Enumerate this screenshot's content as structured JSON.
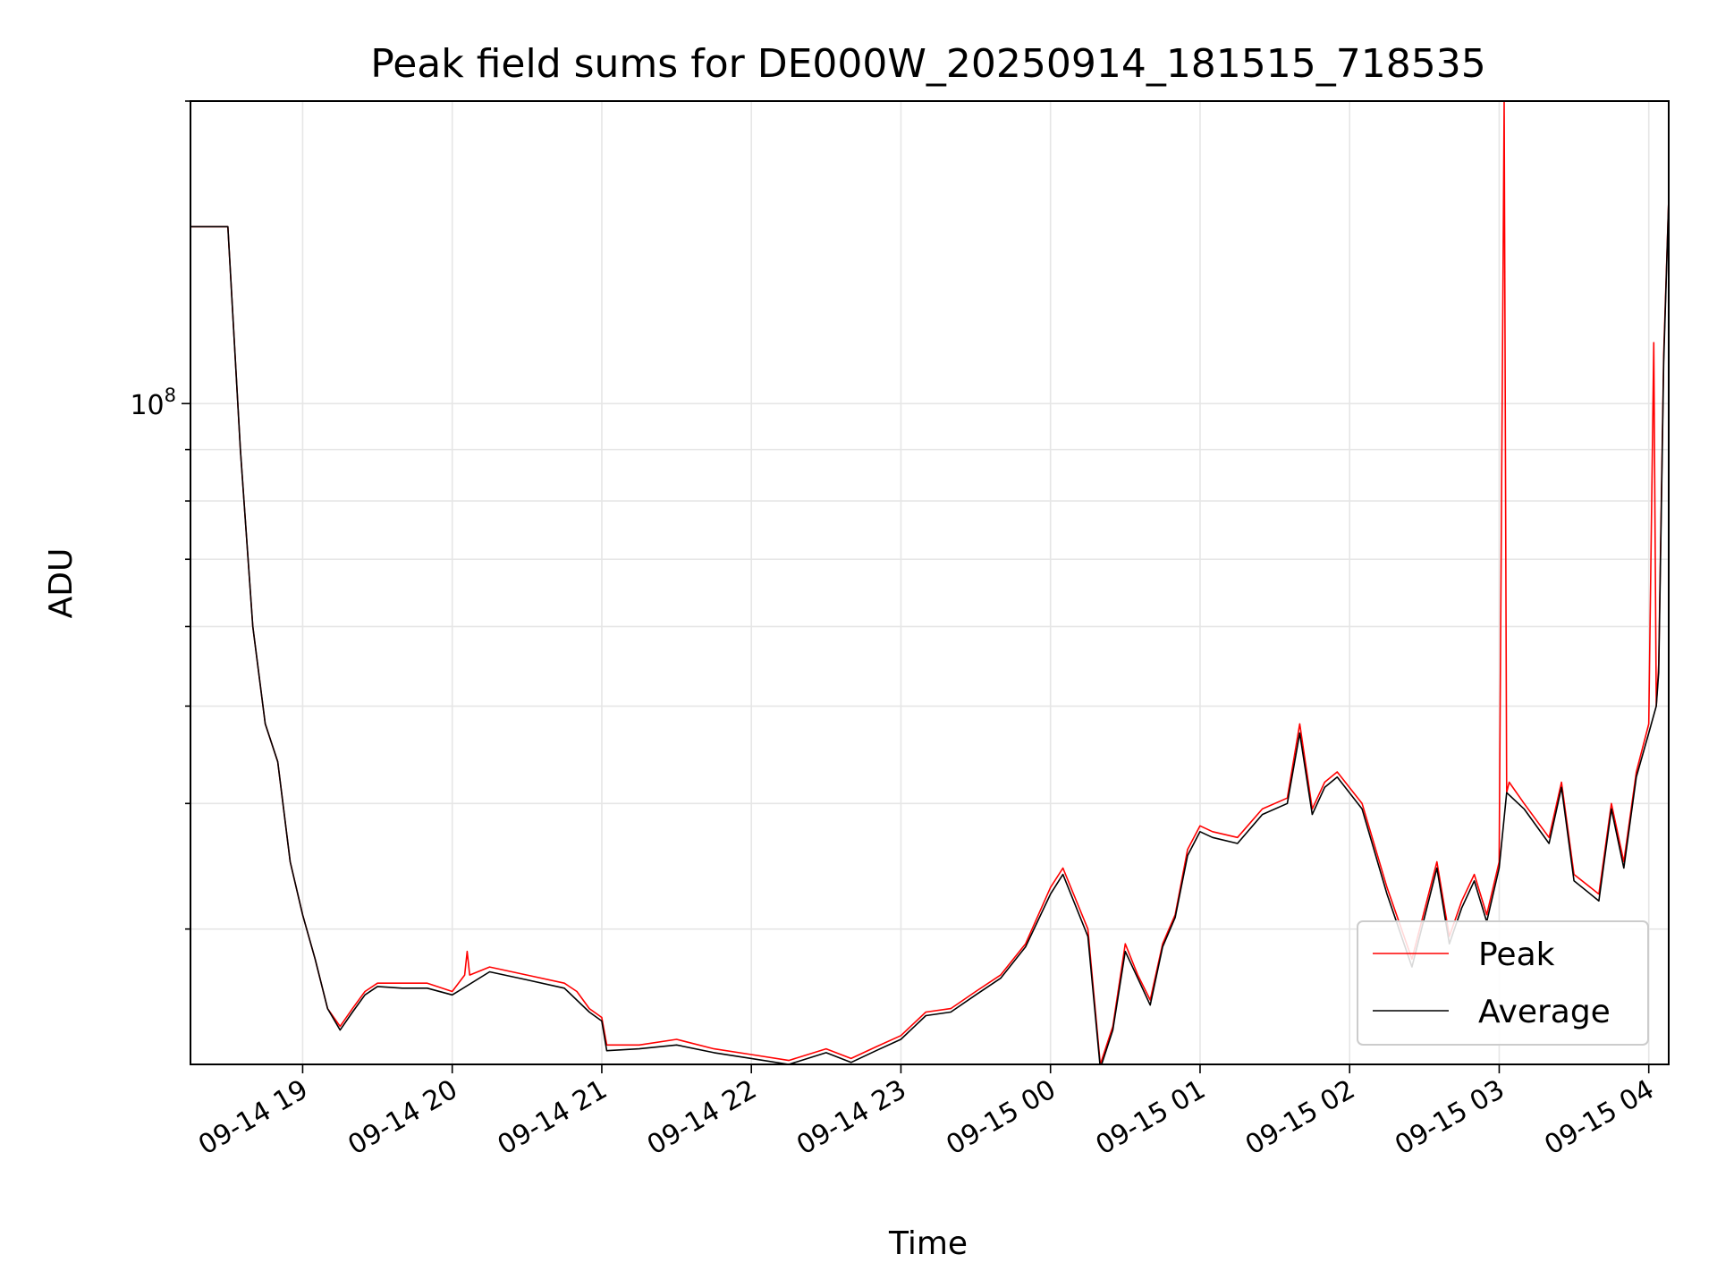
{
  "chart_data": {
    "type": "line",
    "title": "Peak field sums for DE000W_20250914_181515_718535",
    "xlabel": "Time",
    "ylabel": "ADU",
    "yscale": "log",
    "grid": true,
    "legend_position": "lower-right",
    "x_domain": [
      "2025-09-14 18:15",
      "2025-09-15 04:08"
    ],
    "ylim": [
      22000000,
      200000000
    ],
    "x_ticks": [
      {
        "time": "2025-09-14 19:00",
        "label": "09-14 19"
      },
      {
        "time": "2025-09-14 20:00",
        "label": "09-14 20"
      },
      {
        "time": "2025-09-14 21:00",
        "label": "09-14 21"
      },
      {
        "time": "2025-09-14 22:00",
        "label": "09-14 22"
      },
      {
        "time": "2025-09-14 23:00",
        "label": "09-14 23"
      },
      {
        "time": "2025-09-15 00:00",
        "label": "09-15 00"
      },
      {
        "time": "2025-09-15 01:00",
        "label": "09-15 01"
      },
      {
        "time": "2025-09-15 02:00",
        "label": "09-15 02"
      },
      {
        "time": "2025-09-15 03:00",
        "label": "09-15 03"
      },
      {
        "time": "2025-09-15 04:00",
        "label": "09-15 04"
      }
    ],
    "y_major_ticks": [
      {
        "value": 100000000,
        "label_base": "10",
        "label_exp": "8"
      }
    ],
    "y_minor_ticks": [
      30000000,
      40000000,
      50000000,
      60000000,
      70000000,
      80000000,
      90000000,
      200000000
    ],
    "series": [
      {
        "name": "Peak",
        "color": "#ff0000",
        "x": [
          "2025-09-14 18:15",
          "2025-09-14 18:30",
          "2025-09-14 18:35",
          "2025-09-14 18:40",
          "2025-09-14 18:45",
          "2025-09-14 18:50",
          "2025-09-14 18:55",
          "2025-09-14 19:00",
          "2025-09-14 19:05",
          "2025-09-14 19:10",
          "2025-09-14 19:15",
          "2025-09-14 19:20",
          "2025-09-14 19:25",
          "2025-09-14 19:30",
          "2025-09-14 19:40",
          "2025-09-14 19:50",
          "2025-09-14 20:00",
          "2025-09-14 20:05",
          "2025-09-14 20:06",
          "2025-09-14 20:07",
          "2025-09-14 20:15",
          "2025-09-14 20:30",
          "2025-09-14 20:45",
          "2025-09-14 20:50",
          "2025-09-14 20:55",
          "2025-09-14 21:00",
          "2025-09-14 21:02",
          "2025-09-14 21:15",
          "2025-09-14 21:30",
          "2025-09-14 21:45",
          "2025-09-14 22:00",
          "2025-09-14 22:15",
          "2025-09-14 22:30",
          "2025-09-14 22:40",
          "2025-09-14 22:50",
          "2025-09-14 23:00",
          "2025-09-14 23:10",
          "2025-09-14 23:20",
          "2025-09-14 23:30",
          "2025-09-14 23:40",
          "2025-09-14 23:50",
          "2025-09-15 00:00",
          "2025-09-15 00:05",
          "2025-09-15 00:15",
          "2025-09-15 00:20",
          "2025-09-15 00:25",
          "2025-09-15 00:30",
          "2025-09-15 00:35",
          "2025-09-15 00:40",
          "2025-09-15 00:45",
          "2025-09-15 00:50",
          "2025-09-15 00:55",
          "2025-09-15 01:00",
          "2025-09-15 01:05",
          "2025-09-15 01:15",
          "2025-09-15 01:25",
          "2025-09-15 01:35",
          "2025-09-15 01:40",
          "2025-09-15 01:45",
          "2025-09-15 01:50",
          "2025-09-15 01:55",
          "2025-09-15 02:05",
          "2025-09-15 02:15",
          "2025-09-15 02:25",
          "2025-09-15 02:35",
          "2025-09-15 02:40",
          "2025-09-15 02:45",
          "2025-09-15 02:50",
          "2025-09-15 02:55",
          "2025-09-15 03:00",
          "2025-09-15 03:02",
          "2025-09-15 03:03",
          "2025-09-15 03:04",
          "2025-09-15 03:10",
          "2025-09-15 03:20",
          "2025-09-15 03:25",
          "2025-09-15 03:30",
          "2025-09-15 03:40",
          "2025-09-15 03:45",
          "2025-09-15 03:50",
          "2025-09-15 03:55",
          "2025-09-15 04:00",
          "2025-09-15 04:02",
          "2025-09-15 04:03",
          "2025-09-15 04:04",
          "2025-09-15 04:06",
          "2025-09-15 04:08"
        ],
        "y": [
          150000000,
          150000000,
          90000000,
          60000000,
          48000000,
          44000000,
          35000000,
          31000000,
          28000000,
          25000000,
          24000000,
          25000000,
          26000000,
          26500000,
          26500000,
          26500000,
          26000000,
          27000000,
          28500000,
          27000000,
          27500000,
          27000000,
          26500000,
          26000000,
          25000000,
          24500000,
          23000000,
          23000000,
          23300000,
          22800000,
          22500000,
          22200000,
          22800000,
          22300000,
          22900000,
          23500000,
          24800000,
          25000000,
          26000000,
          27000000,
          29000000,
          33000000,
          34500000,
          30000000,
          22000000,
          24000000,
          29000000,
          27000000,
          25500000,
          29000000,
          31000000,
          36000000,
          38000000,
          37500000,
          37000000,
          39500000,
          40500000,
          48000000,
          39500000,
          42000000,
          43000000,
          40000000,
          33000000,
          28000000,
          35000000,
          29500000,
          32000000,
          34000000,
          31000000,
          35000000,
          200000000,
          41000000,
          42000000,
          40000000,
          37000000,
          42000000,
          34000000,
          32500000,
          40000000,
          35000000,
          43000000,
          48000000,
          115000000,
          50000000,
          55000000,
          112000000,
          160000000
        ]
      },
      {
        "name": "Average",
        "color": "#000000",
        "x": [
          "2025-09-14 18:15",
          "2025-09-14 18:30",
          "2025-09-14 18:35",
          "2025-09-14 18:40",
          "2025-09-14 18:45",
          "2025-09-14 18:50",
          "2025-09-14 18:55",
          "2025-09-14 19:00",
          "2025-09-14 19:05",
          "2025-09-14 19:10",
          "2025-09-14 19:15",
          "2025-09-14 19:20",
          "2025-09-14 19:25",
          "2025-09-14 19:30",
          "2025-09-14 19:40",
          "2025-09-14 19:50",
          "2025-09-14 20:00",
          "2025-09-14 20:15",
          "2025-09-14 20:30",
          "2025-09-14 20:45",
          "2025-09-14 20:55",
          "2025-09-14 21:00",
          "2025-09-14 21:02",
          "2025-09-14 21:15",
          "2025-09-14 21:30",
          "2025-09-14 21:45",
          "2025-09-14 22:00",
          "2025-09-14 22:15",
          "2025-09-14 22:30",
          "2025-09-14 22:40",
          "2025-09-14 22:50",
          "2025-09-14 23:00",
          "2025-09-14 23:10",
          "2025-09-14 23:20",
          "2025-09-14 23:30",
          "2025-09-14 23:40",
          "2025-09-14 23:50",
          "2025-09-15 00:00",
          "2025-09-15 00:05",
          "2025-09-15 00:15",
          "2025-09-15 00:20",
          "2025-09-15 00:25",
          "2025-09-15 00:30",
          "2025-09-15 00:35",
          "2025-09-15 00:40",
          "2025-09-15 00:45",
          "2025-09-15 00:50",
          "2025-09-15 00:55",
          "2025-09-15 01:00",
          "2025-09-15 01:05",
          "2025-09-15 01:15",
          "2025-09-15 01:25",
          "2025-09-15 01:35",
          "2025-09-15 01:40",
          "2025-09-15 01:45",
          "2025-09-15 01:50",
          "2025-09-15 01:55",
          "2025-09-15 02:05",
          "2025-09-15 02:15",
          "2025-09-15 02:25",
          "2025-09-15 02:35",
          "2025-09-15 02:40",
          "2025-09-15 02:45",
          "2025-09-15 02:50",
          "2025-09-15 02:55",
          "2025-09-15 03:00",
          "2025-09-15 03:03",
          "2025-09-15 03:10",
          "2025-09-15 03:20",
          "2025-09-15 03:25",
          "2025-09-15 03:30",
          "2025-09-15 03:40",
          "2025-09-15 03:45",
          "2025-09-15 03:50",
          "2025-09-15 03:55",
          "2025-09-15 04:00",
          "2025-09-15 04:03",
          "2025-09-15 04:04",
          "2025-09-15 04:06",
          "2025-09-15 04:08"
        ],
        "y": [
          150000000,
          150000000,
          90000000,
          60000000,
          48000000,
          44000000,
          35000000,
          31000000,
          28000000,
          25000000,
          23800000,
          24800000,
          25800000,
          26300000,
          26200000,
          26200000,
          25800000,
          27200000,
          26700000,
          26200000,
          24800000,
          24300000,
          22700000,
          22800000,
          23000000,
          22600000,
          22300000,
          22000000,
          22600000,
          22100000,
          22700000,
          23300000,
          24600000,
          24800000,
          25800000,
          26800000,
          28800000,
          32500000,
          34000000,
          29500000,
          21800000,
          23800000,
          28500000,
          26800000,
          25200000,
          28800000,
          30800000,
          35500000,
          37500000,
          37000000,
          36500000,
          39000000,
          40000000,
          47000000,
          39000000,
          41500000,
          42500000,
          39500000,
          32500000,
          27500000,
          34500000,
          29000000,
          31500000,
          33500000,
          30500000,
          34500000,
          41000000,
          39500000,
          36500000,
          41500000,
          33500000,
          32000000,
          39500000,
          34500000,
          42500000,
          47000000,
          50000000,
          54000000,
          110000000,
          160000000
        ]
      }
    ]
  }
}
